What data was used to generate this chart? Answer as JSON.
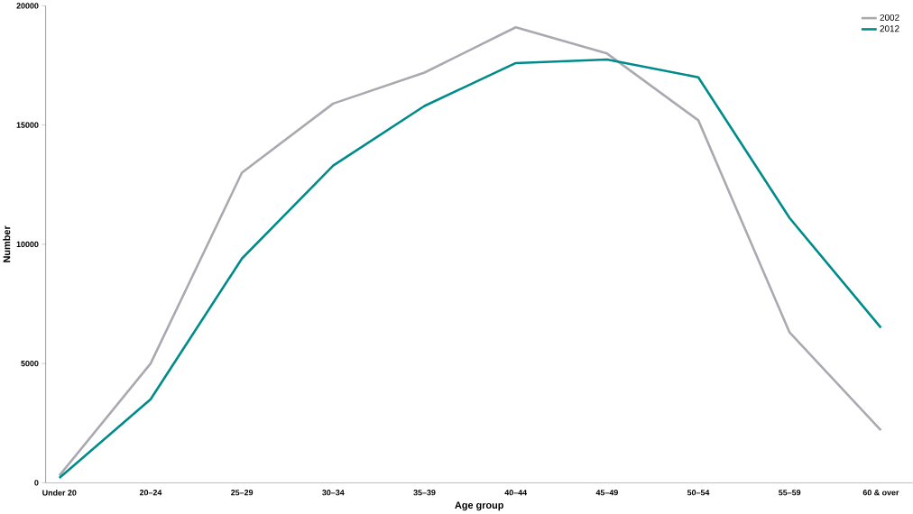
{
  "chart_data": {
    "type": "line",
    "xlabel": "Age group",
    "ylabel": "Number",
    "categories": [
      "Under 20",
      "20–24",
      "25–29",
      "30–34",
      "35–39",
      "40–44",
      "45–49",
      "50–54",
      "55–59",
      "60 & over"
    ],
    "series": [
      {
        "name": "2002",
        "color": "#a9a9b1",
        "values": [
          300,
          5000,
          13000,
          15900,
          17200,
          19100,
          18000,
          15200,
          6300,
          2200
        ]
      },
      {
        "name": "2012",
        "color": "#008b8b",
        "values": [
          200,
          3500,
          9400,
          13300,
          15800,
          17600,
          17750,
          17000,
          11100,
          6500
        ]
      }
    ],
    "ylim": [
      0,
      20000
    ],
    "yticks": [
      0,
      5000,
      10000,
      15000,
      20000
    ],
    "grid": false,
    "legend": "top right",
    "marker": "none",
    "line_style": "solid"
  }
}
